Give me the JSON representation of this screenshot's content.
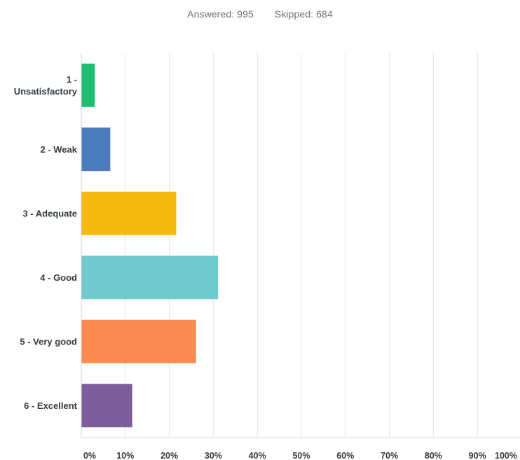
{
  "summary": {
    "answered_label": "Answered:",
    "answered_count": "995",
    "skipped_label": "Skipped:",
    "skipped_count": "684"
  },
  "chart_data": {
    "type": "bar",
    "orientation": "horizontal",
    "categories": [
      [
        "1 -",
        "Unsatisfactory"
      ],
      [
        "2 - Weak"
      ],
      [
        "3 - Adequate"
      ],
      [
        "4 - Good"
      ],
      [
        "5 - Very good"
      ],
      [
        "6 - Excellent"
      ]
    ],
    "values": [
      3,
      6.5,
      21.5,
      31,
      26,
      11.5
    ],
    "colors": [
      "#1fbf73",
      "#4b7bbd",
      "#f6bb0e",
      "#6ecacc",
      "#fd8a50",
      "#7c5e9c"
    ],
    "xlim": [
      0,
      100
    ],
    "xticks": [
      0,
      10,
      20,
      30,
      40,
      50,
      60,
      70,
      80,
      90,
      100
    ],
    "xtick_labels": [
      "0%",
      "10%",
      "20%",
      "30%",
      "40%",
      "50%",
      "60%",
      "70%",
      "80%",
      "90%",
      "100%"
    ],
    "grid": true,
    "title": "",
    "xlabel": "",
    "ylabel": ""
  }
}
